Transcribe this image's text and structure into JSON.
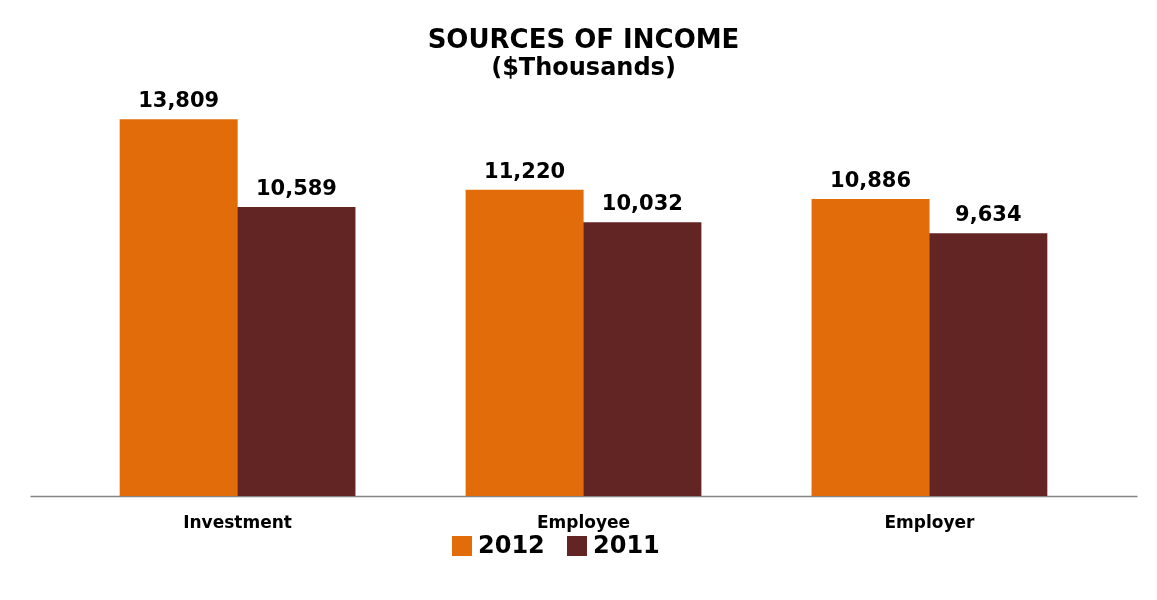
{
  "chart_data": {
    "type": "bar",
    "title": "SOURCES OF INCOME",
    "subtitle": "($Thousands)",
    "categories": [
      "Investment",
      "Employee",
      "Employer"
    ],
    "series": [
      {
        "name": "2012",
        "color": "#e36c0a",
        "values": [
          13809,
          11220,
          10886
        ],
        "value_labels": [
          "13,809",
          "11,220",
          "10,886"
        ]
      },
      {
        "name": "2011",
        "color": "#632523",
        "values": [
          10589,
          10032,
          9634
        ],
        "value_labels": [
          "10,589",
          "10,032",
          "9,634"
        ]
      }
    ],
    "tick_labels": "x",
    "legend": "bottom",
    "grid": false
  }
}
